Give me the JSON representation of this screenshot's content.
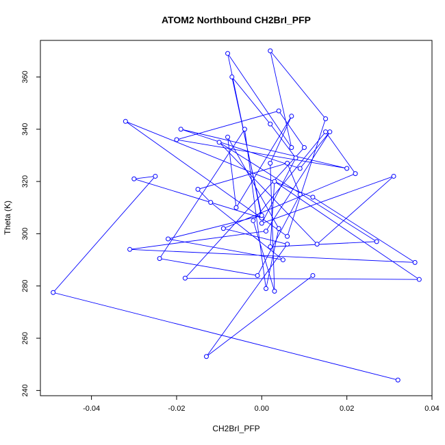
{
  "chart_data": {
    "type": "line",
    "title": "ATOM2 Northbound CH2BrI_PFP",
    "xlabel": "CH2BrI_PFP",
    "ylabel": "Theta (K)",
    "xlim": [
      -0.052,
      0.04
    ],
    "ylim": [
      238,
      374
    ],
    "xticks": [
      -0.04,
      -0.02,
      0.0,
      0.02,
      0.04
    ],
    "xtick_labels": [
      "-0.04",
      "-0.02",
      "0.00",
      "0.02",
      "0.04"
    ],
    "yticks": [
      240,
      260,
      280,
      300,
      320,
      340,
      360
    ],
    "ytick_labels": [
      "240",
      "260",
      "280",
      "300",
      "320",
      "340",
      "360"
    ],
    "grid": false,
    "legend": "none",
    "line_color": "#0000ff",
    "marker": "open-circle",
    "series": [
      {
        "x": [
          0.032,
          -0.049,
          -0.025,
          -0.03,
          0.0,
          -0.008,
          0.007,
          0.002,
          0.015,
          0.006,
          -0.032,
          0.012,
          0.036,
          -0.031,
          0.001,
          0.016,
          0.009,
          -0.019,
          0.02,
          -0.02,
          0.004,
          0.01,
          -0.018,
          0.037,
          0.003,
          0.002,
          0.027,
          -0.01,
          0.013,
          0.031,
          0.0,
          0.008,
          0.002,
          -0.007,
          0.0,
          -0.022,
          0.005,
          -0.012,
          -0.015,
          0.006,
          0.009,
          -0.001,
          -0.024,
          -0.004,
          0.001,
          0.004,
          -0.008,
          -0.006,
          0.007,
          0.002,
          0.003,
          -0.002,
          0.015,
          0.022,
          -0.009,
          0.006,
          -0.013,
          0.012
        ],
        "y": [
          244,
          277.5,
          322,
          321,
          306,
          369,
          333,
          370,
          344,
          299,
          343,
          314,
          289,
          294,
          301,
          339,
          325,
          340,
          325,
          336,
          347,
          333,
          283,
          282.5,
          320,
          295,
          297,
          335,
          296,
          322,
          304,
          329,
          342,
          360,
          307,
          298,
          290,
          312,
          317,
          327,
          315,
          284,
          290.5,
          340,
          279,
          302,
          337,
          310,
          345,
          327,
          278,
          305,
          339,
          323,
          302,
          296,
          253,
          284
        ]
      }
    ]
  }
}
